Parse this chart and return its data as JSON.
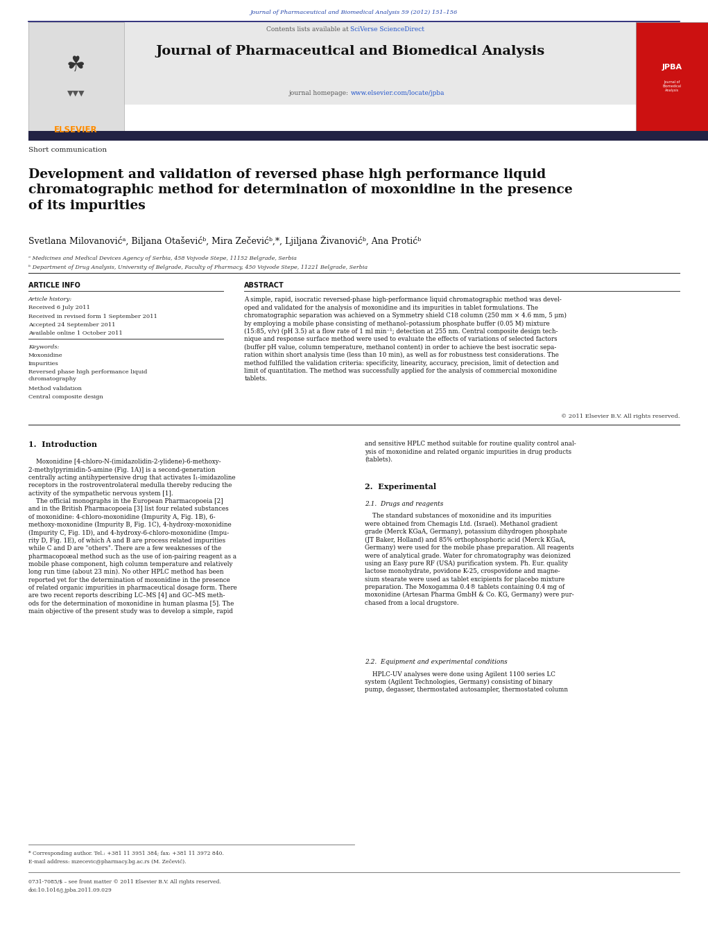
{
  "page_width": 10.21,
  "page_height": 13.51,
  "bg_color": "#ffffff",
  "journal_ref_text": "Journal of Pharmaceutical and Biomedical Analysis 59 (2012) 151–156",
  "journal_ref_color": "#2244aa",
  "header_bg": "#e8e8e8",
  "header_text": "Journal of Pharmaceutical and Biomedical Analysis",
  "contents_text": "Contents lists available at ",
  "sciverse_text": "SciVerse ScienceDirect",
  "sciverse_color": "#2255cc",
  "homepage_text": "journal homepage: ",
  "homepage_url": "www.elsevier.com/locate/jpba",
  "homepage_url_color": "#2255cc",
  "elsevier_color": "#ff8c00",
  "article_type": "Short communication",
  "title": "Development and validation of reversed phase high performance liquid\nchromatographic method for determination of moxonidine in the presence\nof its impurities",
  "authors": "Svetlana Milovanovićᵃ, Biljana Otaševićᵇ, Mira Zečevićᵇ,*, Ljiljana Živanovićᵇ, Ana Protićᵇ",
  "affil_a": "ᵃ Medicines and Medical Devices Agency of Serbia, 458 Vojvode Stepe, 11152 Belgrade, Serbia",
  "affil_b": "ᵇ Department of Drug Analysis, University of Belgrade, Faculty of Pharmacy, 450 Vojvode Stepe, 11221 Belgrade, Serbia",
  "article_info_header": "ARTICLE INFO",
  "abstract_header": "ABSTRACT",
  "article_history_label": "Article history:",
  "received1": "Received 6 July 2011",
  "received2": "Received in revised form 1 September 2011",
  "accepted": "Accepted 24 September 2011",
  "available": "Available online 1 October 2011",
  "keywords_label": "Keywords:",
  "keywords": [
    "Moxonidine",
    "Impurities",
    "Reversed phase high performance liquid\nchromatography",
    "Method validation",
    "Central composite design"
  ],
  "abstract_text": "A simple, rapid, isocratic reversed-phase high-performance liquid chromatographic method was devel-\noped and validated for the analysis of moxonidine and its impurities in tablet formulations. The\nchromatographic separation was achieved on a Symmetry shield C18 column (250 mm × 4.6 mm, 5 μm)\nby employing a mobile phase consisting of methanol–potassium phosphate buffer (0.05 M) mixture\n(15:85, v/v) (pH 3.5) at a flow rate of 1 ml min⁻¹; detection at 255 nm. Central composite design tech-\nnique and response surface method were used to evaluate the effects of variations of selected factors\n(buffer pH value, column temperature, methanol content) in order to achieve the best isocratic sepa-\nration within short analysis time (less than 10 min), as well as for robustness test considerations. The\nmethod fulfilled the validation criteria: specificity, linearity, accuracy, precision, limit of detection and\nlimit of quantitation. The method was successfully applied for the analysis of commercial moxonidine\ntablets.",
  "copyright": "© 2011 Elsevier B.V. All rights reserved.",
  "intro_header": "1.  Introduction",
  "intro_body": "    Moxonidine [4-chloro-N-(imidazolidin-2-ylidene)-6-methoxy-\n2-methylpyrimidin-5-amine (Fig. 1A)] is a second-generation\ncentrally acting antihypertensive drug that activates I₁-imidazoline\nreceptors in the rostroventrolateral medulla thereby reducing the\nactivity of the sympathetic nervous system [1].\n    The official monographs in the European Pharmacopoeia [2]\nand in the British Pharmacopoeia [3] list four related substances\nof moxonidine: 4-chloro-moxonidine (Impurity A, Fig. 1B), 6-\nmethoxy-moxonidine (Impurity B, Fig. 1C), 4-hydroxy-moxonidine\n(Impurity C, Fig. 1D), and 4-hydroxy-6-chloro-moxonidine (Impu-\nrity D, Fig. 1E), of which A and B are process related impurities\nwhile C and D are \"others\". There are a few weaknesses of the\npharmacopoæal method such as the use of ion-pairing reagent as a\nmobile phase component, high column temperature and relatively\nlong run time (about 23 min). No other HPLC method has been\nreported yet for the determination of moxonidine in the presence\nof related organic impurities in pharmaceutical dosage form. There\nare two recent reports describing LC–MS [4] and GC–MS meth-\nods for the determination of moxonidine in human plasma [5]. The\nmain objective of the present study was to develop a simple, rapid",
  "right_col_intro": "and sensitive HPLC method suitable for routine quality control anal-\nysis of moxonidine and related organic impurities in drug products\n(tablets).",
  "exp_header": "2.  Experimental",
  "drugs_header": "2.1.  Drugs and reagents",
  "drugs_text": "    The standard substances of moxonidine and its impurities\nwere obtained from Chemagis Ltd. (Israel). Methanol gradient\ngrade (Merck KGaA, Germany), potassium dihydrogen phosphate\n(JT Baker, Holland) and 85% orthophosphoric acid (Merck KGaA,\nGermany) were used for the mobile phase preparation. All reagents\nwere of analytical grade. Water for chromatography was deionized\nusing an Easy pure RF (USA) purification system. Ph. Eur. quality\nlactose monohydrate, povidone K-25, crospovidone and magne-\nsium stearate were used as tablet excipients for placebo mixture\npreparation. The Moxogamma 0.4® tablets containing 0.4 mg of\nmoxonidine (Artesan Pharma GmbH & Co. KG, Germany) were pur-\nchased from a local drugstore.",
  "equip_header": "2.2.  Equipment and experimental conditions",
  "equip_text": "    HPLC-UV analyses were done using Agilent 1100 series LC\nsystem (Agilent Technologies, Germany) consisting of binary\npump, degasser, thermostated autosampler, thermostated column",
  "footnote_star": "* Corresponding author. Tel.: +381 11 3951 384; fax: +381 11 3972 840.",
  "footnote_email": "E-mail address: mzecevic@pharmacy.bg.ac.rs (M. Zečević).",
  "footnote_bottom1": "0731-7085/$ – see front matter © 2011 Elsevier B.V. All rights reserved.",
  "footnote_bottom2": "doi:10.1016/j.jpba.2011.09.029",
  "dark_bar_color": "#222244",
  "header_border_color": "#111166",
  "section_line_color": "#333333"
}
